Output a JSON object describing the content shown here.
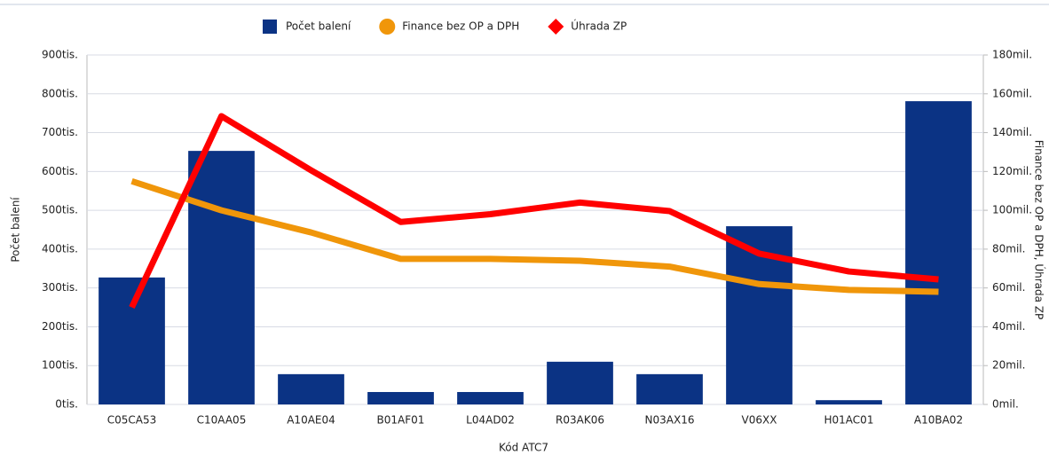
{
  "chart_data": {
    "type": "bar-line",
    "categories": [
      "C05CA53",
      "C10AA05",
      "A10AE04",
      "B01AF01",
      "L04AD02",
      "R03AK06",
      "N03AX16",
      "V06XX",
      "H01AC01",
      "A10BA02"
    ],
    "series": [
      {
        "name": "Počet balení",
        "color": "#0b3384",
        "type": "bar",
        "values": [
          327000,
          653000,
          78000,
          32000,
          32000,
          110000,
          78000,
          459000,
          11000,
          781000
        ]
      },
      {
        "name": "Finance bez OP a DPH",
        "color": "#f0960a",
        "type": "line",
        "axis": "y2",
        "values": [
          115000000,
          100000000,
          88600000,
          75000000,
          75000000,
          74000000,
          71000000,
          62000000,
          59000000,
          58000000
        ]
      },
      {
        "name": "Úhrada ZP",
        "color": "#ff0000",
        "type": "line",
        "axis": "y2",
        "values": [
          50000000,
          148500000,
          120600000,
          94000000,
          98000000,
          104000000,
          99600000,
          77700000,
          68500000,
          64400000
        ]
      }
    ],
    "x_label": "Kód ATC7",
    "y_label": "Počet balení",
    "y2_label": "Finance bez OP a DPH, Úhrada ZP",
    "ylim": [
      0,
      900000
    ],
    "yticks": [
      {
        "value": 0,
        "label": "0tis."
      },
      {
        "value": 100000,
        "label": "100tis."
      },
      {
        "value": 200000,
        "label": "200tis."
      },
      {
        "value": 300000,
        "label": "300tis."
      },
      {
        "value": 400000,
        "label": "400tis."
      },
      {
        "value": 500000,
        "label": "500tis."
      },
      {
        "value": 600000,
        "label": "600tis."
      },
      {
        "value": 700000,
        "label": "700tis."
      },
      {
        "value": 800000,
        "label": "800tis."
      },
      {
        "value": 900000,
        "label": "900tis."
      }
    ],
    "y2lim": [
      0,
      180000000
    ],
    "y2ticks": [
      {
        "value": 0,
        "label": "0mil."
      },
      {
        "value": 20000000,
        "label": "20mil."
      },
      {
        "value": 40000000,
        "label": "40mil."
      },
      {
        "value": 60000000,
        "label": "60mil."
      },
      {
        "value": 80000000,
        "label": "80mil."
      },
      {
        "value": 100000000,
        "label": "100mil."
      },
      {
        "value": 120000000,
        "label": "120mil."
      },
      {
        "value": 140000000,
        "label": "140mil."
      },
      {
        "value": 160000000,
        "label": "160mil."
      },
      {
        "value": 180000000,
        "label": "180mil."
      }
    ],
    "grid": true
  }
}
